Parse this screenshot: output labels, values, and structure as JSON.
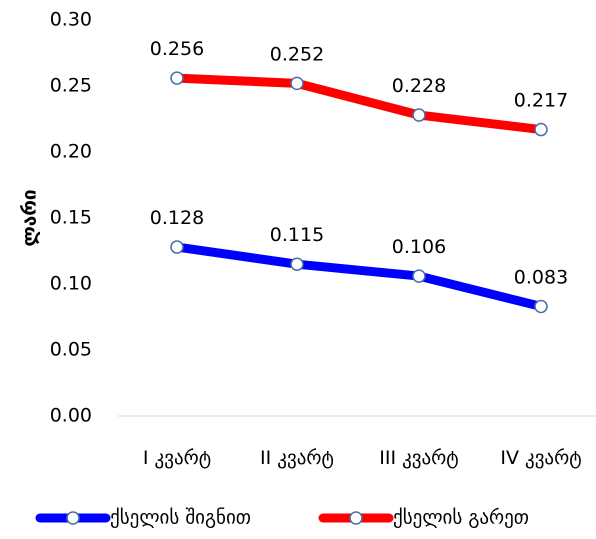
{
  "chart_data": {
    "type": "line",
    "categories": [
      "I კვარტ",
      "II კვარტ",
      "III კვარტ",
      "IV კვარტ"
    ],
    "series": [
      {
        "name": "ქსელის შიგნით",
        "color": "#0000FF",
        "values": [
          0.128,
          0.115,
          0.106,
          0.083
        ],
        "labels": [
          "0.128",
          "0.115",
          "0.106",
          "0.083"
        ]
      },
      {
        "name": "ქსელის გარეთ",
        "color": "#FF0000",
        "values": [
          0.256,
          0.252,
          0.228,
          0.217
        ],
        "labels": [
          "0.256",
          "0.252",
          "0.228",
          "0.217"
        ]
      }
    ],
    "ylabel": "ლარი",
    "xlabel": "",
    "ylim": [
      0,
      0.3
    ],
    "yticks": [
      "0.00",
      "0.05",
      "0.10",
      "0.15",
      "0.20",
      "0.25",
      "0.30"
    ],
    "grid": false,
    "legend": "bottom",
    "marker_fill": "#ffffff"
  }
}
